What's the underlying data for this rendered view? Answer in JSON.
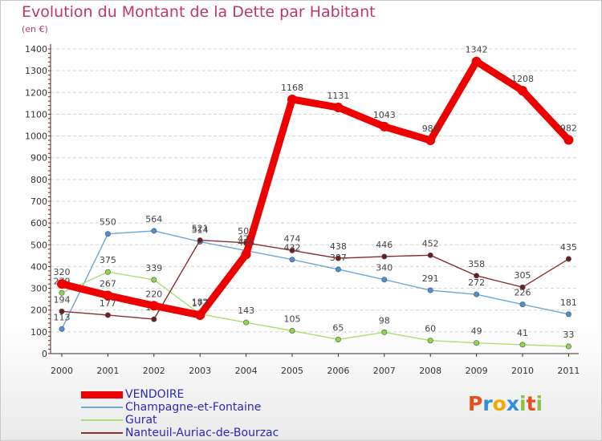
{
  "header": {
    "title": "Evolution du Montant de la Dette par Habitant",
    "unit": "(en €)"
  },
  "chart_data": {
    "type": "line",
    "title": "Evolution du Montant de la Dette par Habitant",
    "subtitle": "(en €)",
    "xlabel": "",
    "ylabel": "",
    "x": [
      "2000",
      "2001",
      "2002",
      "2003",
      "2004",
      "2005",
      "2006",
      "2007",
      "2008",
      "2009",
      "2010",
      "2011"
    ],
    "ylim": [
      0,
      1400
    ],
    "yticks": [
      0,
      100,
      200,
      300,
      400,
      500,
      600,
      700,
      800,
      900,
      1000,
      1100,
      1200,
      1300,
      1400
    ],
    "grid": "horizontal dashed",
    "legend_position": "bottom-left",
    "series": [
      {
        "name": "VENDOIRE",
        "color": "#ee0000",
        "emphasis": true,
        "values": [
          320,
          267,
          220,
          177,
          456,
          1168,
          1131,
          1043,
          980,
          1342,
          1208,
          982
        ]
      },
      {
        "name": "Champagne-et-Fontaine",
        "color": "#6ea6d6",
        "marker": "#4a8fd4",
        "values": [
          113,
          550,
          564,
          514,
          473,
          432,
          387,
          340,
          291,
          272,
          226,
          181
        ]
      },
      {
        "name": "Gurat",
        "color": "#a8e070",
        "marker": "#8fd44a",
        "values": [
          279,
          375,
          339,
          182,
          143,
          105,
          65,
          98,
          60,
          49,
          41,
          33
        ]
      },
      {
        "name": "Nanteuil-Auriac-de-Bourzac",
        "color": "#8b2e2e",
        "marker": "#6b1f1f",
        "values": [
          194,
          177,
          158,
          521,
          509,
          474,
          438,
          446,
          452,
          358,
          305,
          435
        ]
      }
    ]
  },
  "logo": {
    "letters": [
      "P",
      "r",
      "o",
      "x",
      "i",
      "t",
      "i"
    ]
  },
  "colors": {
    "title": "#c0356b",
    "legend_text": "#2929b8",
    "logo": [
      "#e84e1b",
      "#2f8fd8",
      "#f2a900",
      "#2f8fd8",
      "#8bc34a",
      "#e84e1b",
      "#8bc34a"
    ]
  }
}
